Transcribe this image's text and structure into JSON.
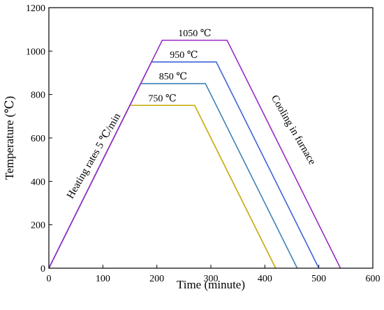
{
  "chart_data": {
    "type": "line",
    "xlabel": "Time (minute)",
    "ylabel": "Temperature (℃)",
    "xlim": [
      0,
      600
    ],
    "ylim": [
      0,
      1200
    ],
    "xticks": [
      0,
      100,
      200,
      300,
      400,
      500,
      600
    ],
    "yticks": [
      0,
      200,
      400,
      600,
      800,
      1000,
      1200
    ],
    "grid": false,
    "series": [
      {
        "name": "750 ℃",
        "color": "#c8a800",
        "x": [
          0,
          150,
          270,
          420
        ],
        "y": [
          0,
          750,
          750,
          0
        ]
      },
      {
        "name": "850 ℃",
        "color": "#3f82b5",
        "x": [
          0,
          170,
          290,
          460
        ],
        "y": [
          0,
          850,
          850,
          0
        ]
      },
      {
        "name": "950 ℃",
        "color": "#3f64d6",
        "x": [
          0,
          190,
          310,
          500
        ],
        "y": [
          0,
          950,
          950,
          0
        ]
      },
      {
        "name": "1050 ℃",
        "color": "#9a2bc6",
        "x": [
          0,
          210,
          330,
          540
        ],
        "y": [
          0,
          1050,
          1050,
          0
        ]
      }
    ],
    "annotations": [
      {
        "text": "Heating rates 5 ℃/min",
        "x": 88,
        "y": 510,
        "angle": -60
      },
      {
        "text": "Cooling in furnace",
        "x": 448,
        "y": 630,
        "angle": 60
      }
    ]
  }
}
